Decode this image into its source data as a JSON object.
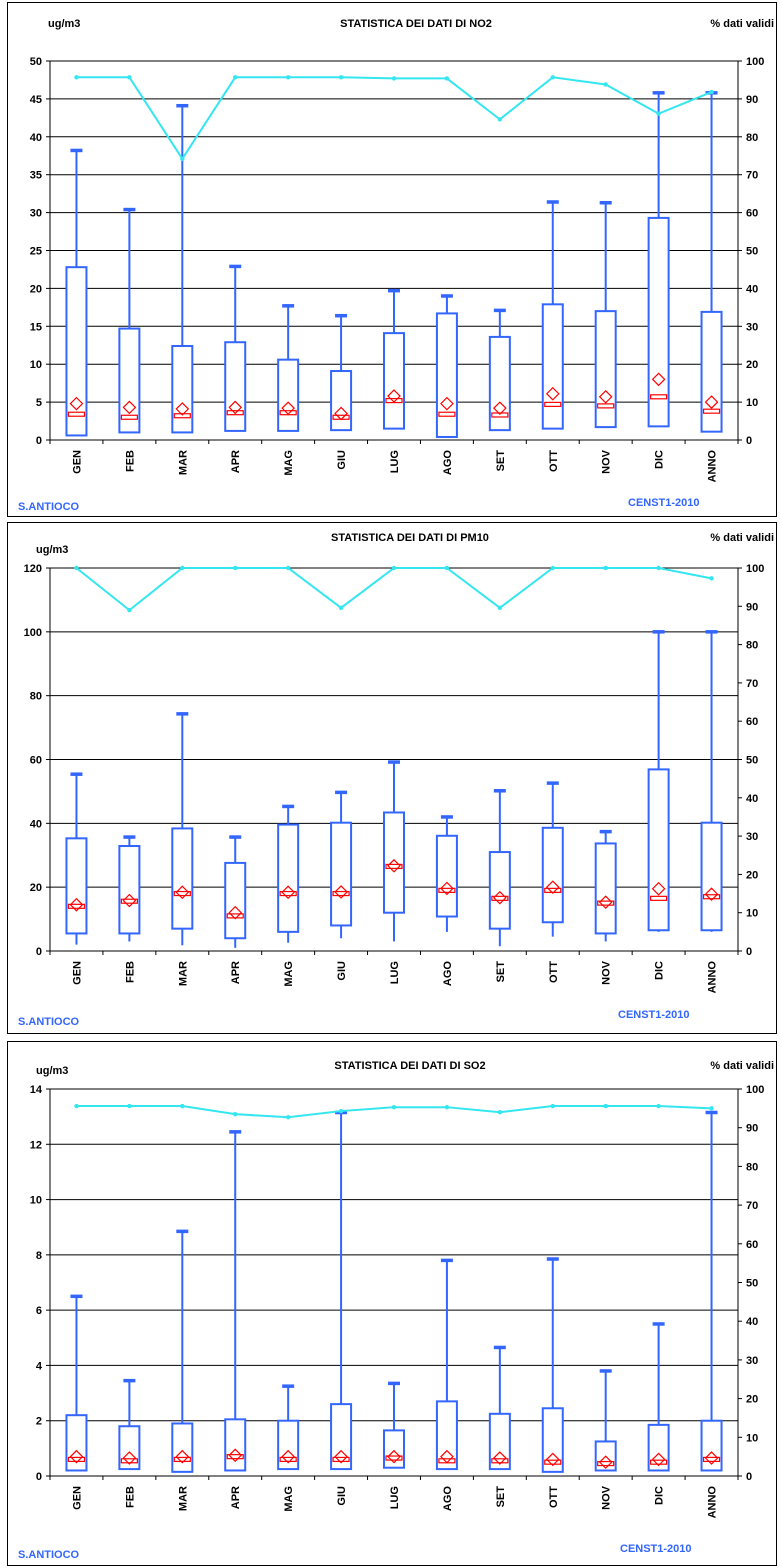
{
  "colors": {
    "box": "#3366ff",
    "median": "#ff0000",
    "mean": "#ff0000",
    "validity_line": "#33e6f0",
    "grid": "#000000",
    "footer_text": "#3366ff"
  },
  "categories": [
    "GEN",
    "FEB",
    "MAR",
    "APR",
    "MAG",
    "GIU",
    "LUG",
    "AGO",
    "SET",
    "OTT",
    "NOV",
    "DIC",
    "ANNO"
  ],
  "chart_data": [
    {
      "type": "box",
      "title": "STATISTICA DEI DATI DI NO2",
      "ylabel_left": "ug/m3",
      "ylabel_right": "% dati validi",
      "station": "S.ANTIOCO",
      "code": "CENST1-2010",
      "ylim_left": [
        0,
        50
      ],
      "yticks_left": [
        0,
        5,
        10,
        15,
        20,
        25,
        30,
        35,
        40,
        45,
        50
      ],
      "ylim_right": [
        0,
        100
      ],
      "yticks_right": [
        0,
        10,
        20,
        30,
        40,
        50,
        60,
        70,
        80,
        90,
        100
      ],
      "grid": true,
      "categories": [
        "GEN",
        "FEB",
        "MAR",
        "APR",
        "MAG",
        "GIU",
        "LUG",
        "AGO",
        "SET",
        "OTT",
        "NOV",
        "DIC",
        "ANNO"
      ],
      "min": [
        0.6,
        1.0,
        1.0,
        1.2,
        1.2,
        1.3,
        1.5,
        0.4,
        1.3,
        1.5,
        1.7,
        1.8,
        1.1
      ],
      "q1": [
        0.6,
        1.0,
        1.0,
        1.2,
        1.2,
        1.3,
        1.5,
        0.4,
        1.3,
        1.5,
        1.7,
        1.8,
        1.1
      ],
      "median": [
        3.4,
        3.0,
        3.2,
        3.6,
        3.6,
        3.0,
        5.2,
        3.4,
        3.3,
        4.7,
        4.5,
        5.7,
        3.8
      ],
      "q3": [
        22.8,
        14.7,
        12.4,
        12.9,
        10.6,
        9.1,
        14.1,
        16.7,
        13.6,
        17.9,
        17.0,
        29.3,
        16.9
      ],
      "max": [
        38.2,
        30.4,
        44.1,
        22.9,
        17.7,
        16.4,
        19.7,
        19.0,
        17.1,
        31.4,
        31.3,
        45.8,
        45.8
      ],
      "mean": [
        4.8,
        4.3,
        4.1,
        4.3,
        4.2,
        3.5,
        5.8,
        4.8,
        4.2,
        6.1,
        5.7,
        8.0,
        5.0
      ],
      "validity": [
        95.7,
        95.7,
        74.2,
        95.7,
        95.7,
        95.7,
        95.4,
        95.4,
        84.6,
        95.7,
        93.8,
        86.1,
        91.8
      ]
    },
    {
      "type": "box",
      "title": "STATISTICA DEI DATI DI PM10",
      "ylabel_left": "ug/m3",
      "ylabel_right": "% dati validi",
      "station": "S.ANTIOCO",
      "code": "CENST1-2010",
      "ylim_left": [
        0,
        120
      ],
      "yticks_left": [
        0,
        20,
        40,
        60,
        80,
        100,
        120
      ],
      "ylim_right": [
        0,
        100
      ],
      "yticks_right": [
        0,
        10,
        20,
        30,
        40,
        50,
        60,
        70,
        80,
        90,
        100
      ],
      "grid": true,
      "categories": [
        "GEN",
        "FEB",
        "MAR",
        "APR",
        "MAG",
        "GIU",
        "LUG",
        "AGO",
        "SET",
        "OTT",
        "NOV",
        "DIC",
        "ANNO"
      ],
      "min": [
        2.0,
        3.0,
        1.8,
        1.0,
        2.6,
        4.0,
        3.0,
        6.0,
        1.5,
        4.5,
        3.0,
        6.0,
        6.0
      ],
      "q1": [
        5.5,
        5.5,
        7.0,
        4.0,
        6.0,
        8.0,
        12.0,
        10.8,
        7.0,
        9.0,
        5.5,
        6.5,
        6.5
      ],
      "median": [
        14.0,
        15.6,
        18.0,
        11.0,
        18.0,
        18.0,
        26.5,
        19.0,
        16.5,
        19.0,
        15.0,
        16.5,
        17.0
      ],
      "q3": [
        35.3,
        32.9,
        38.4,
        27.6,
        39.6,
        40.2,
        43.4,
        36.1,
        31.0,
        38.6,
        33.7,
        56.9,
        40.2
      ],
      "max": [
        55.4,
        35.7,
        74.3,
        35.7,
        45.3,
        49.7,
        59.2,
        42.0,
        50.2,
        52.6,
        37.4,
        100.0,
        100.0
      ],
      "mean": [
        14.5,
        15.8,
        18.4,
        12.0,
        18.4,
        18.5,
        26.7,
        19.6,
        16.7,
        20.0,
        15.3,
        19.5,
        17.8
      ],
      "validity": [
        100,
        89.0,
        100,
        100,
        100,
        89.6,
        100,
        100,
        89.6,
        100,
        100,
        100,
        97.3
      ]
    },
    {
      "type": "box",
      "title": "STATISTICA DEI DATI DI SO2",
      "ylabel_left": "ug/m3",
      "ylabel_right": "% dati validi",
      "station": "S.ANTIOCO",
      "code": "CENST1-2010",
      "ylim_left": [
        0,
        14
      ],
      "yticks_left": [
        0,
        2,
        4,
        6,
        8,
        10,
        12,
        14
      ],
      "ylim_right": [
        0,
        100
      ],
      "yticks_right": [
        0,
        10,
        20,
        30,
        40,
        50,
        60,
        70,
        80,
        90,
        100
      ],
      "grid": true,
      "categories": [
        "GEN",
        "FEB",
        "MAR",
        "APR",
        "MAG",
        "GIU",
        "LUG",
        "AGO",
        "SET",
        "OTT",
        "NOV",
        "DIC",
        "ANNO"
      ],
      "min": [
        0.2,
        0.25,
        0.15,
        0.2,
        0.25,
        0.25,
        0.3,
        0.25,
        0.25,
        0.15,
        0.2,
        0.2,
        0.2
      ],
      "q1": [
        0.2,
        0.25,
        0.15,
        0.2,
        0.25,
        0.25,
        0.3,
        0.25,
        0.25,
        0.15,
        0.2,
        0.2,
        0.2
      ],
      "median": [
        0.6,
        0.55,
        0.6,
        0.7,
        0.6,
        0.6,
        0.65,
        0.55,
        0.55,
        0.5,
        0.45,
        0.5,
        0.6
      ],
      "q3": [
        2.2,
        1.8,
        1.9,
        2.05,
        2.0,
        2.6,
        1.65,
        2.7,
        2.25,
        2.45,
        1.25,
        1.85,
        2.0
      ],
      "max": [
        6.5,
        3.45,
        8.85,
        12.45,
        3.25,
        13.15,
        3.35,
        7.8,
        4.65,
        7.85,
        3.8,
        5.5,
        13.15
      ],
      "mean": [
        0.7,
        0.65,
        0.7,
        0.75,
        0.7,
        0.7,
        0.7,
        0.7,
        0.65,
        0.6,
        0.5,
        0.6,
        0.65
      ],
      "validity": [
        95.6,
        95.6,
        95.6,
        93.5,
        92.7,
        94.3,
        95.3,
        95.3,
        94.0,
        95.6,
        95.6,
        95.6,
        95.0
      ]
    }
  ]
}
